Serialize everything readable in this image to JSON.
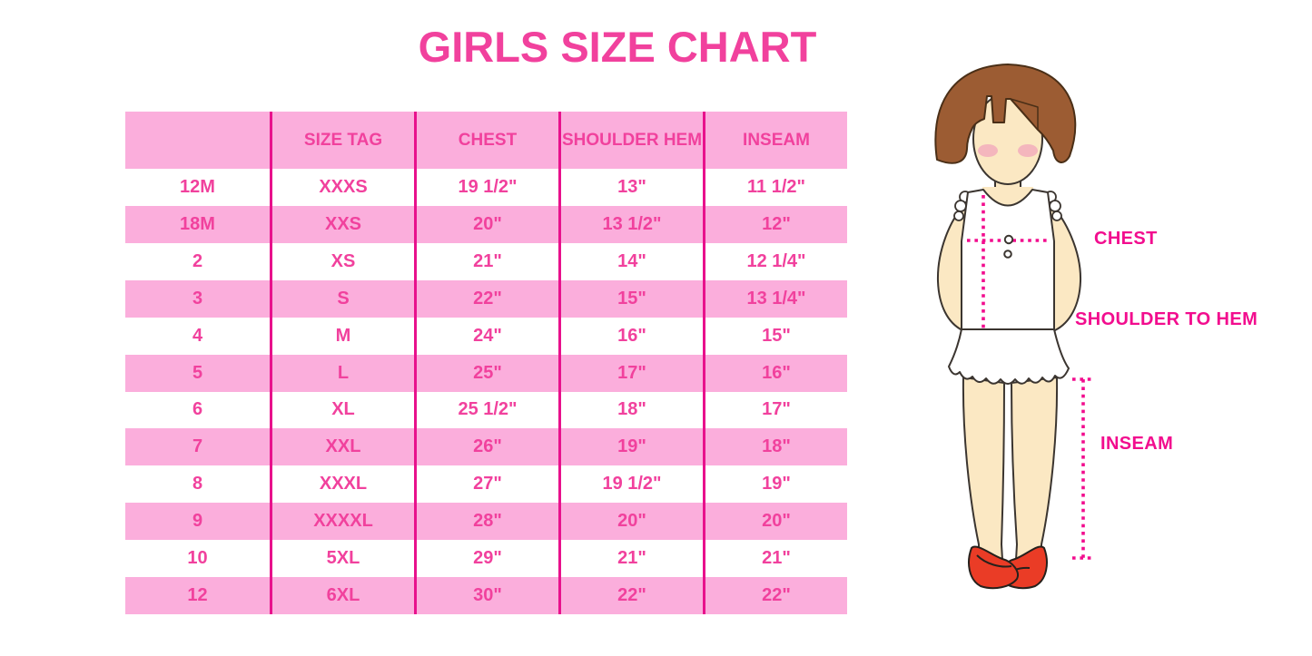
{
  "title": "GIRLS SIZE CHART",
  "colors": {
    "accent_text_pink": "#F1419D",
    "stripe_pink": "#FBAEDC",
    "divider_magenta": "#E8118C",
    "measure_magenta": "#F20D8E",
    "hair_brown": "#9C5C33",
    "skin_tan": "#FBE8C3",
    "shoe_red": "#EA3C26"
  },
  "chart_data": {
    "type": "table",
    "title": "GIRLS SIZE CHART",
    "columns": [
      "",
      "SIZE TAG",
      "CHEST",
      "SHOULDER HEM",
      "INSEAM"
    ],
    "rows": [
      [
        "12M",
        "XXXS",
        "19 1/2\"",
        "13\"",
        "11 1/2\""
      ],
      [
        "18M",
        "XXS",
        "20\"",
        "13 1/2\"",
        "12\""
      ],
      [
        "2",
        "XS",
        "21\"",
        "14\"",
        "12 1/4\""
      ],
      [
        "3",
        "S",
        "22\"",
        "15\"",
        "13 1/4\""
      ],
      [
        "4",
        "M",
        "24\"",
        "16\"",
        "15\""
      ],
      [
        "5",
        "L",
        "25\"",
        "17\"",
        "16\""
      ],
      [
        "6",
        "XL",
        "25 1/2\"",
        "18\"",
        "17\""
      ],
      [
        "7",
        "XXL",
        "26\"",
        "19\"",
        "18\""
      ],
      [
        "8",
        "XXXL",
        "27\"",
        "19 1/2\"",
        "19\""
      ],
      [
        "9",
        "XXXXL",
        "28\"",
        "20\"",
        "20\""
      ],
      [
        "10",
        "5XL",
        "29\"",
        "21\"",
        "21\""
      ],
      [
        "12",
        "6XL",
        "30\"",
        "22\"",
        "22\""
      ]
    ]
  },
  "figure": {
    "chest_label": "CHEST",
    "shoulder_to_hem_label": "SHOULDER TO HEM",
    "inseam_label": "INSEAM"
  }
}
